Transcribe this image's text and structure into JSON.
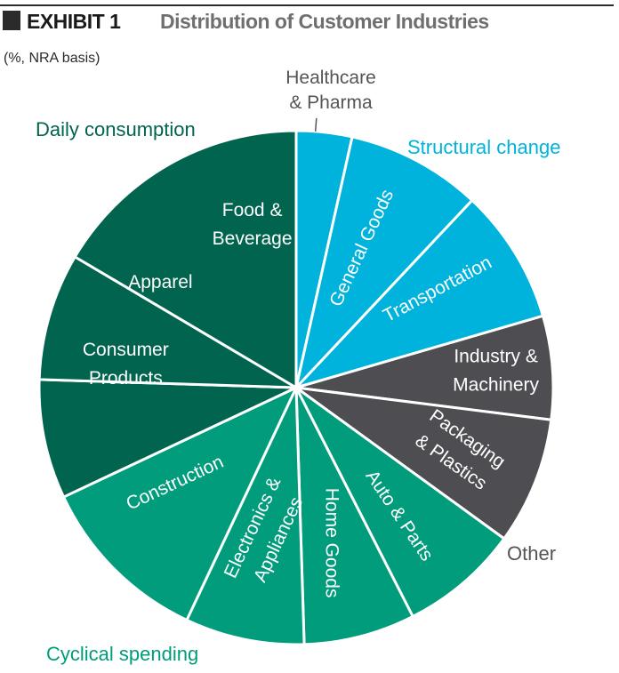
{
  "header": {
    "exhibit": "EXHIBIT 1",
    "title": "Distribution of Customer Industries",
    "unit": "(%, NRA basis)"
  },
  "colors": {
    "structural_change": "#00b3dc",
    "daily_consumption": "#00644f",
    "cyclical_spending": "#009c7c",
    "other": "#4d4d52",
    "block": "#2b2b2b"
  },
  "chart_data": {
    "type": "pie",
    "title": "",
    "groups": [
      {
        "name": "Structural change",
        "color": "#00b3dc"
      },
      {
        "name": "Other",
        "color": "#4d4d52"
      },
      {
        "name": "Cyclical spending",
        "color": "#009c7c"
      },
      {
        "name": "Daily consumption",
        "color": "#00644f"
      }
    ],
    "slices": [
      {
        "label": "Healthcare & Pharma",
        "lines": [
          "Healthcare",
          "& Pharma"
        ],
        "value": 3.5,
        "group": "Structural change"
      },
      {
        "label": "General Goods",
        "lines": [
          "General Goods"
        ],
        "value": 8.5,
        "group": "Structural change"
      },
      {
        "label": "Transportation",
        "lines": [
          "Transportation"
        ],
        "value": 8.5,
        "group": "Structural change"
      },
      {
        "label": "Industry & Machinery",
        "lines": [
          "Industry &",
          "Machinery"
        ],
        "value": 6.5,
        "group": "Other"
      },
      {
        "label": "Packaging & Plastics",
        "lines": [
          "Packaging",
          "& Plastics"
        ],
        "value": 8.0,
        "group": "Other"
      },
      {
        "label": "Auto & Parts",
        "lines": [
          "Auto & Parts"
        ],
        "value": 7.5,
        "group": "Cyclical spending"
      },
      {
        "label": "Home Goods",
        "lines": [
          "Home Goods"
        ],
        "value": 7.0,
        "group": "Cyclical spending"
      },
      {
        "label": "Electronics & Appliances",
        "lines": [
          "Electronics &",
          "Appliances"
        ],
        "value": 7.5,
        "group": "Cyclical spending"
      },
      {
        "label": "Construction",
        "lines": [
          "Construction"
        ],
        "value": 11.0,
        "group": "Cyclical spending"
      },
      {
        "label": "Consumer Products",
        "lines": [
          "Consumer",
          "Products"
        ],
        "value": 7.5,
        "group": "Daily consumption"
      },
      {
        "label": "Apparel",
        "lines": [
          "Apparel"
        ],
        "value": 8.0,
        "group": "Daily consumption"
      },
      {
        "label": "Food & Beverage",
        "lines": [
          "Food &",
          "Beverage"
        ],
        "value": 16.5,
        "group": "Daily consumption"
      }
    ]
  }
}
